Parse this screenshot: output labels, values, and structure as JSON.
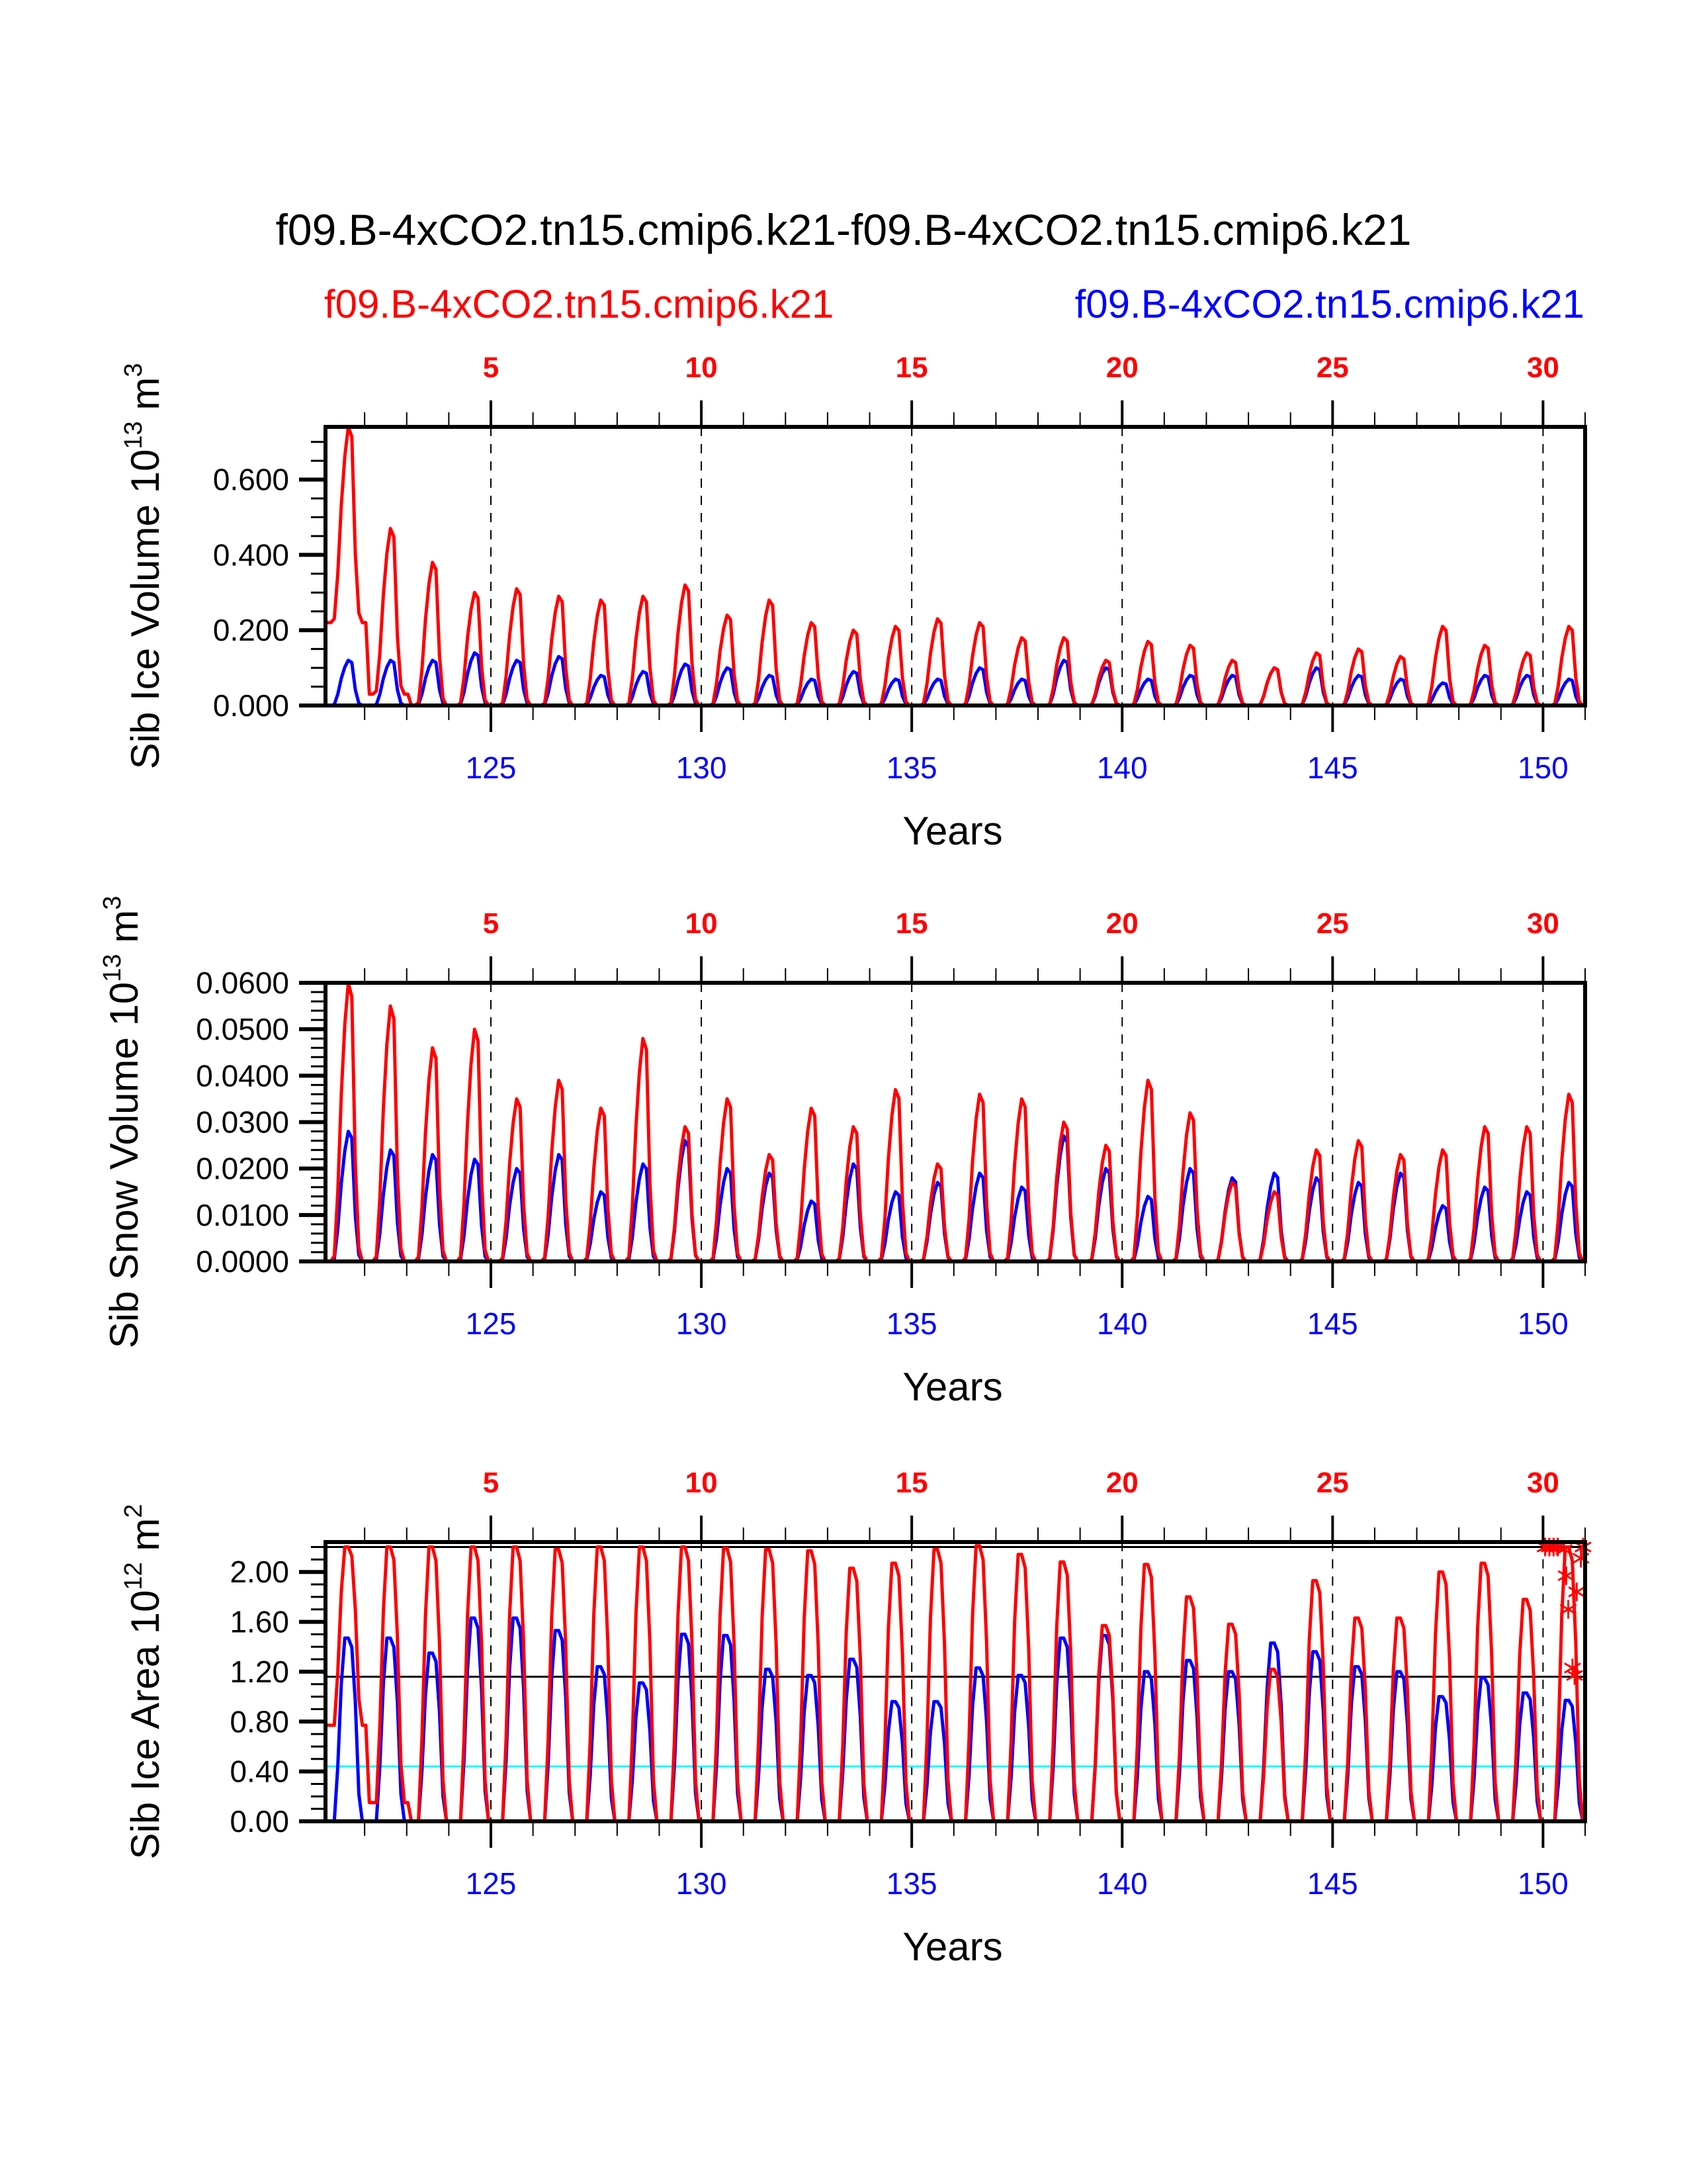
{
  "chart_data": {
    "type": "line",
    "title": "f09.B-4xCO2.tn15.cmip6.k21-f09.B-4xCO2.tn15.cmip6.k21",
    "legend": [
      {
        "name": "f09.B-4xCO2.tn15.cmip6.k21",
        "color": "#ff0000",
        "placement": "top-left"
      },
      {
        "name": "f09.B-4xCO2.tn15.cmip6.k21",
        "color": "#0000ff",
        "placement": "top-right"
      }
    ],
    "colors": {
      "red": "#ff0000",
      "blue": "#0000ff",
      "ref_black": "#000000",
      "ref_cyan": "#00ffff"
    },
    "xlim": [
      121.07,
      151.0
    ],
    "top_axis_ticks": [
      "5",
      "10",
      "15",
      "20",
      "25",
      "30"
    ],
    "bottom_axis_ticks": [
      "125",
      "130",
      "135",
      "140",
      "145",
      "150"
    ],
    "bottom_axis_values": [
      125,
      130,
      135,
      140,
      145,
      150
    ],
    "xlabel": "Years",
    "panels": [
      {
        "id": "ice-volume",
        "ylabel_main": "Sib Ice Volume 10",
        "ylabel_exp": "13",
        "ylabel_unit": " m",
        "ylabel_unit_exp": "3",
        "ylim": [
          0,
          0.74
        ],
        "yticks": [
          0,
          0.2,
          0.4,
          0.6
        ],
        "ytick_labels": [
          "0.000",
          "0.200",
          "0.400",
          "0.600"
        ],
        "minor_step": 0.05,
        "red_peaks": [
          0.74,
          0.47,
          0.38,
          0.3,
          0.31,
          0.29,
          0.28,
          0.29,
          0.32,
          0.24,
          0.28,
          0.22,
          0.2,
          0.21,
          0.23,
          0.22,
          0.18,
          0.18,
          0.12,
          0.17,
          0.16,
          0.12,
          0.1,
          0.14,
          0.15,
          0.13,
          0.21,
          0.16,
          0.14,
          0.21
        ],
        "red_troughs": [
          0.22,
          0.03,
          0.0,
          0.0,
          0.0,
          0.0,
          0.0,
          0.0,
          0.0,
          0.0,
          0.0,
          0.0,
          0.0,
          0.0,
          0.0,
          0.0,
          0.0,
          0.0,
          0.0,
          0.0,
          0.0,
          0.0,
          0.0,
          0.0,
          0.0,
          0.0,
          0.0,
          0.0,
          0.0,
          0.0
        ],
        "blue_peaks": [
          0.12,
          0.12,
          0.12,
          0.14,
          0.12,
          0.13,
          0.08,
          0.09,
          0.11,
          0.1,
          0.08,
          0.07,
          0.09,
          0.07,
          0.07,
          0.1,
          0.07,
          0.12,
          0.1,
          0.07,
          0.08,
          0.08,
          0.1,
          0.1,
          0.08,
          0.07,
          0.06,
          0.08,
          0.08,
          0.07
        ],
        "ref_lines": []
      },
      {
        "id": "snow-volume",
        "ylabel_main": "Sib Snow Volume 10",
        "ylabel_exp": "13",
        "ylabel_unit": " m",
        "ylabel_unit_exp": "3",
        "ylim": [
          0,
          0.06
        ],
        "yticks": [
          0,
          0.01,
          0.02,
          0.03,
          0.04,
          0.05,
          0.06
        ],
        "ytick_labels": [
          "0.0000",
          "0.0100",
          "0.0200",
          "0.0300",
          "0.0400",
          "0.0500",
          "0.0600"
        ],
        "minor_step": 0.002,
        "red_peaks": [
          0.06,
          0.055,
          0.046,
          0.05,
          0.035,
          0.039,
          0.033,
          0.048,
          0.029,
          0.035,
          0.023,
          0.033,
          0.029,
          0.037,
          0.021,
          0.036,
          0.035,
          0.03,
          0.025,
          0.039,
          0.032,
          0.017,
          0.015,
          0.024,
          0.026,
          0.023,
          0.024,
          0.029,
          0.029,
          0.036
        ],
        "red_troughs": [
          0,
          0,
          0,
          0,
          0,
          0,
          0,
          0,
          0,
          0,
          0,
          0,
          0,
          0,
          0,
          0,
          0,
          0,
          0,
          0,
          0,
          0,
          0,
          0,
          0,
          0,
          0,
          0,
          0,
          0
        ],
        "blue_peaks": [
          0.028,
          0.024,
          0.023,
          0.022,
          0.02,
          0.023,
          0.015,
          0.021,
          0.026,
          0.02,
          0.019,
          0.013,
          0.021,
          0.015,
          0.017,
          0.019,
          0.016,
          0.027,
          0.02,
          0.014,
          0.02,
          0.018,
          0.019,
          0.018,
          0.017,
          0.019,
          0.012,
          0.016,
          0.015,
          0.017
        ],
        "ref_lines": []
      },
      {
        "id": "ice-area",
        "ylabel_main": "Sib Ice Area 10",
        "ylabel_exp": "12",
        "ylabel_unit": " m",
        "ylabel_unit_exp": "2",
        "ylim": [
          0,
          2.24
        ],
        "yticks": [
          0,
          0.4,
          0.8,
          1.2,
          1.6,
          2.0
        ],
        "ytick_labels": [
          "0.00",
          "0.40",
          "0.80",
          "1.20",
          "1.60",
          "2.00"
        ],
        "minor_step": 0.1,
        "red_peaks": [
          2.2,
          2.2,
          2.2,
          2.2,
          2.2,
          2.18,
          2.2,
          2.2,
          2.2,
          2.19,
          2.18,
          2.17,
          2.03,
          2.07,
          2.18,
          2.21,
          2.14,
          2.08,
          1.57,
          2.06,
          1.8,
          1.58,
          1.22,
          1.93,
          1.63,
          1.63,
          2.0,
          2.07,
          1.78,
          2.2
        ],
        "red_troughs": [
          0.77,
          0.15,
          0.0,
          0.0,
          0.0,
          0.0,
          0.0,
          0.0,
          0.0,
          0.0,
          0.0,
          0.0,
          0.0,
          0.0,
          0.0,
          0.0,
          0.0,
          0.0,
          0.0,
          0.0,
          0.0,
          0.0,
          0.0,
          0.0,
          0.0,
          0.0,
          0.0,
          0.0,
          0.0,
          0.0
        ],
        "blue_peaks": [
          1.47,
          1.47,
          1.35,
          1.63,
          1.63,
          1.53,
          1.24,
          1.11,
          1.5,
          1.49,
          1.22,
          1.17,
          1.3,
          0.96,
          0.96,
          1.23,
          1.17,
          1.47,
          1.49,
          1.2,
          1.29,
          1.2,
          1.43,
          1.36,
          1.24,
          1.2,
          1.0,
          1.15,
          1.03,
          0.97
        ],
        "ref_lines": [
          {
            "value": 2.2,
            "color": "#000000"
          },
          {
            "value": 1.16,
            "color": "#000000"
          },
          {
            "value": 0.44,
            "color": "#00ffff"
          }
        ],
        "star_markers": [
          {
            "x": 150.05,
            "y": 2.2
          },
          {
            "x": 150.15,
            "y": 2.2
          },
          {
            "x": 150.25,
            "y": 2.2
          },
          {
            "x": 150.35,
            "y": 2.2
          },
          {
            "x": 150.5,
            "y": 2.18
          },
          {
            "x": 150.95,
            "y": 2.2
          },
          {
            "x": 150.9,
            "y": 2.11
          },
          {
            "x": 150.55,
            "y": 1.97
          },
          {
            "x": 150.8,
            "y": 1.84
          },
          {
            "x": 150.6,
            "y": 1.7
          },
          {
            "x": 150.7,
            "y": 1.23
          },
          {
            "x": 150.75,
            "y": 1.17
          }
        ]
      }
    ]
  }
}
